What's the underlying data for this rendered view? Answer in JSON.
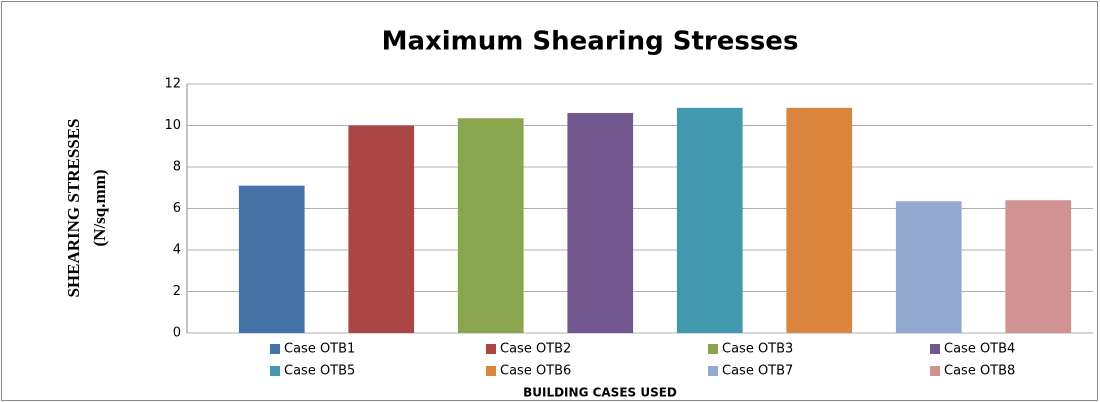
{
  "chart_data": {
    "type": "bar",
    "title": "Maximum Shearing Stresses",
    "y_label": [
      "SHEARING STRESSES",
      "(N/sq.mm)"
    ],
    "x_label": "BUILDING CASES USED",
    "categories": [
      null
    ],
    "series": [
      {
        "name": "Case OTB1",
        "color": "#4572a7",
        "values": [
          7.1
        ]
      },
      {
        "name": "Case OTB2",
        "color": "#aa4643",
        "values": [
          10.0
        ]
      },
      {
        "name": "Case OTB3",
        "color": "#89a54e",
        "values": [
          10.35
        ]
      },
      {
        "name": "Case OTB4",
        "color": "#71588f",
        "values": [
          10.6
        ]
      },
      {
        "name": "Case OTB5",
        "color": "#4198af",
        "values": [
          10.85
        ]
      },
      {
        "name": "Case OTB6",
        "color": "#db843d",
        "values": [
          10.85
        ]
      },
      {
        "name": "Case OTB7",
        "color": "#93a9cf",
        "values": [
          6.35
        ]
      },
      {
        "name": "Case OTB8",
        "color": "#d19392",
        "values": [
          6.4
        ]
      }
    ],
    "ylim": [
      0,
      12
    ],
    "yticks": [
      0,
      2,
      4,
      6,
      8,
      10,
      12
    ],
    "grid": true,
    "legend": "bottom"
  }
}
